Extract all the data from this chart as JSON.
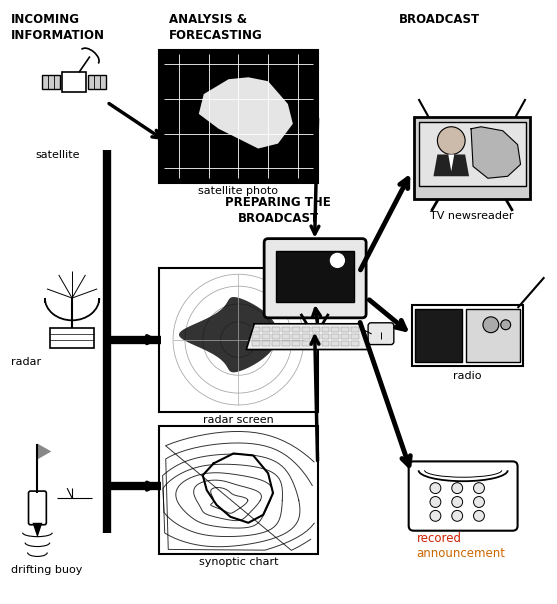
{
  "bg_color": "#ffffff",
  "heading_incoming": "INCOMING\nINFORMATION",
  "heading_analysis": "ANALYSIS &\nFORECASTING",
  "heading_broadcast": "BROADCAST",
  "heading_preparing": "PREPARING THE\nBROADCAST",
  "label_satellite": "satellite",
  "label_radar": "radar",
  "label_buoy": "drifting buoy",
  "label_sat_photo": "satellite photo",
  "label_radar_screen": "radar screen",
  "label_synoptic": "synoptic chart",
  "label_tv": "TV newsreader",
  "label_radio": "radio",
  "label_recorded1": "recored",
  "label_recorded2": "announcement",
  "recorded_color1": "#cc2200",
  "recorded_color2": "#cc6600",
  "figsize": [
    5.57,
    6.04
  ],
  "dpi": 100
}
